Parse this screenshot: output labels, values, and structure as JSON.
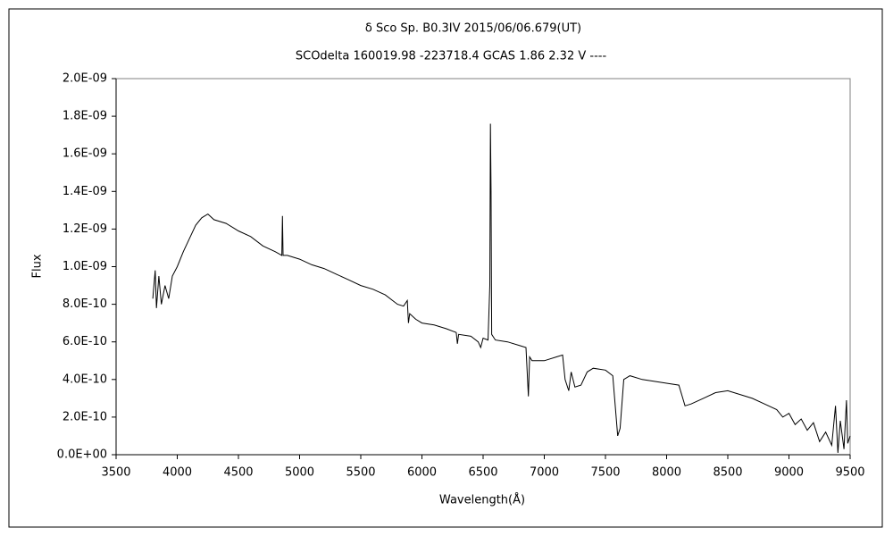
{
  "chart_data": {
    "type": "line",
    "title": "δ Sco    Sp. B0.3IV    2015/06/06.679(UT)",
    "subtitle": "SCOdelta 160019.98 -223718.4 GCAS 1.86 2.32 V ----",
    "xlabel": "Wavelength(Å)",
    "ylabel": "Flux",
    "xlim": [
      3500,
      9500
    ],
    "xticks": [
      3500,
      4000,
      4500,
      5000,
      5500,
      6000,
      6500,
      7000,
      7500,
      8000,
      8500,
      9000,
      9500
    ],
    "ylim": [
      0,
      2e-09
    ],
    "yticks": [
      {
        "value": 0,
        "label": "0.0E+00"
      },
      {
        "value": 2e-10,
        "label": "2.0E-10"
      },
      {
        "value": 4e-10,
        "label": "4.0E-10"
      },
      {
        "value": 6e-10,
        "label": "6.0E-10"
      },
      {
        "value": 8e-10,
        "label": "8.0E-10"
      },
      {
        "value": 1e-09,
        "label": "1.0E-09"
      },
      {
        "value": 1.2e-09,
        "label": "1.2E-09"
      },
      {
        "value": 1.4e-09,
        "label": "1.4E-09"
      },
      {
        "value": 1.6e-09,
        "label": "1.6E-09"
      },
      {
        "value": 1.8e-09,
        "label": "1.8E-09"
      },
      {
        "value": 2e-09,
        "label": "2.0E-09"
      }
    ],
    "grid": false,
    "color": "#000000",
    "x": [
      3800,
      3820,
      3830,
      3850,
      3870,
      3900,
      3930,
      3960,
      4000,
      4050,
      4100,
      4150,
      4200,
      4250,
      4300,
      4400,
      4500,
      4600,
      4700,
      4800,
      4855,
      4860,
      4865,
      4900,
      5000,
      5100,
      5200,
      5300,
      5400,
      5500,
      5600,
      5700,
      5800,
      5850,
      5880,
      5890,
      5900,
      5950,
      6000,
      6100,
      6200,
      6280,
      6290,
      6300,
      6400,
      6460,
      6480,
      6500,
      6540,
      6555,
      6560,
      6565,
      6570,
      6600,
      6700,
      6800,
      6850,
      6870,
      6880,
      6900,
      7000,
      7100,
      7150,
      7170,
      7200,
      7220,
      7250,
      7300,
      7350,
      7400,
      7500,
      7560,
      7600,
      7620,
      7650,
      7700,
      7800,
      7900,
      8000,
      8100,
      8150,
      8200,
      8300,
      8400,
      8500,
      8600,
      8700,
      8800,
      8900,
      8950,
      9000,
      9050,
      9100,
      9150,
      9200,
      9250,
      9300,
      9350,
      9380,
      9400,
      9420,
      9450,
      9470,
      9480,
      9500
    ],
    "values": [
      8.3e-10,
      9.8e-10,
      7.8e-10,
      9.5e-10,
      8e-10,
      9e-10,
      8.3e-10,
      9.5e-10,
      1e-09,
      1.08e-09,
      1.15e-09,
      1.22e-09,
      1.26e-09,
      1.28e-09,
      1.25e-09,
      1.23e-09,
      1.19e-09,
      1.16e-09,
      1.11e-09,
      1.08e-09,
      1.06e-09,
      1.27e-09,
      1.06e-09,
      1.06e-09,
      1.04e-09,
      1.01e-09,
      9.9e-10,
      9.6e-10,
      9.3e-10,
      9e-10,
      8.8e-10,
      8.5e-10,
      8e-10,
      7.9e-10,
      8.2e-10,
      7e-10,
      7.5e-10,
      7.2e-10,
      7e-10,
      6.9e-10,
      6.7e-10,
      6.5e-10,
      5.9e-10,
      6.4e-10,
      6.3e-10,
      6e-10,
      5.7e-10,
      6.2e-10,
      6.1e-10,
      9e-10,
      1.76e-09,
      1.4e-09,
      6.4e-10,
      6.1e-10,
      6e-10,
      5.8e-10,
      5.7e-10,
      3.1e-10,
      5.2e-10,
      5e-10,
      5e-10,
      5.2e-10,
      5.3e-10,
      4e-10,
      3.4e-10,
      4.4e-10,
      3.6e-10,
      3.7e-10,
      4.4e-10,
      4.6e-10,
      4.5e-10,
      4.2e-10,
      1e-10,
      1.4e-10,
      4e-10,
      4.2e-10,
      4e-10,
      3.9e-10,
      3.8e-10,
      3.7e-10,
      2.6e-10,
      2.7e-10,
      3e-10,
      3.3e-10,
      3.4e-10,
      3.2e-10,
      3e-10,
      2.7e-10,
      2.4e-10,
      2e-10,
      2.2e-10,
      1.6e-10,
      1.9e-10,
      1.3e-10,
      1.7e-10,
      7e-11,
      1.2e-10,
      5e-11,
      2.6e-10,
      1e-11,
      1.8e-10,
      3e-11,
      2.9e-10,
      6e-11,
      1e-10
    ]
  }
}
